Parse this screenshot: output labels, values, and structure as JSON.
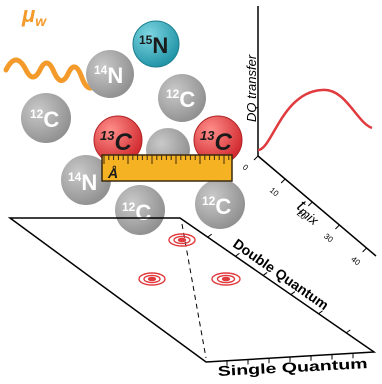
{
  "microwave": {
    "label_main": "μ",
    "label_sub": "w",
    "color": "#f39a2b"
  },
  "atoms": [
    {
      "id": "n15",
      "iso": "15",
      "sym": "N",
      "kind": "nitrogen15"
    },
    {
      "id": "n14-top",
      "iso": "14",
      "sym": "N",
      "kind": "grey"
    },
    {
      "id": "c12-left",
      "iso": "12",
      "sym": "C",
      "kind": "grey"
    },
    {
      "id": "c12-topright",
      "iso": "12",
      "sym": "C",
      "kind": "grey"
    },
    {
      "id": "c13-left",
      "iso": "13",
      "sym": "C",
      "kind": "red"
    },
    {
      "id": "c13-right",
      "iso": "13",
      "sym": "C",
      "kind": "red"
    },
    {
      "id": "n14-bottom",
      "iso": "14",
      "sym": "N",
      "kind": "grey"
    },
    {
      "id": "c12-bottom",
      "iso": "12",
      "sym": "C",
      "kind": "grey"
    },
    {
      "id": "c12-bottomright",
      "iso": "12",
      "sym": "C",
      "kind": "grey"
    }
  ],
  "ruler": {
    "unit": "Å",
    "color": "#f5b323"
  },
  "buildup_plot": {
    "y_label": "DQ transfer",
    "x_label_main": "t",
    "x_label_sub": "mix",
    "x_ticks": [
      "0",
      "10",
      "20",
      "30",
      "40"
    ],
    "curve_color": "#e03a3e"
  },
  "spectrum": {
    "axis_double": "Double Quantum",
    "axis_single": "Single Quantum",
    "peak_color": "#e03a3e"
  },
  "colors": {
    "grey_atom": "#9b9b9c",
    "red_atom": "#e03a3e",
    "n15_atom": "#2fa6b8"
  }
}
